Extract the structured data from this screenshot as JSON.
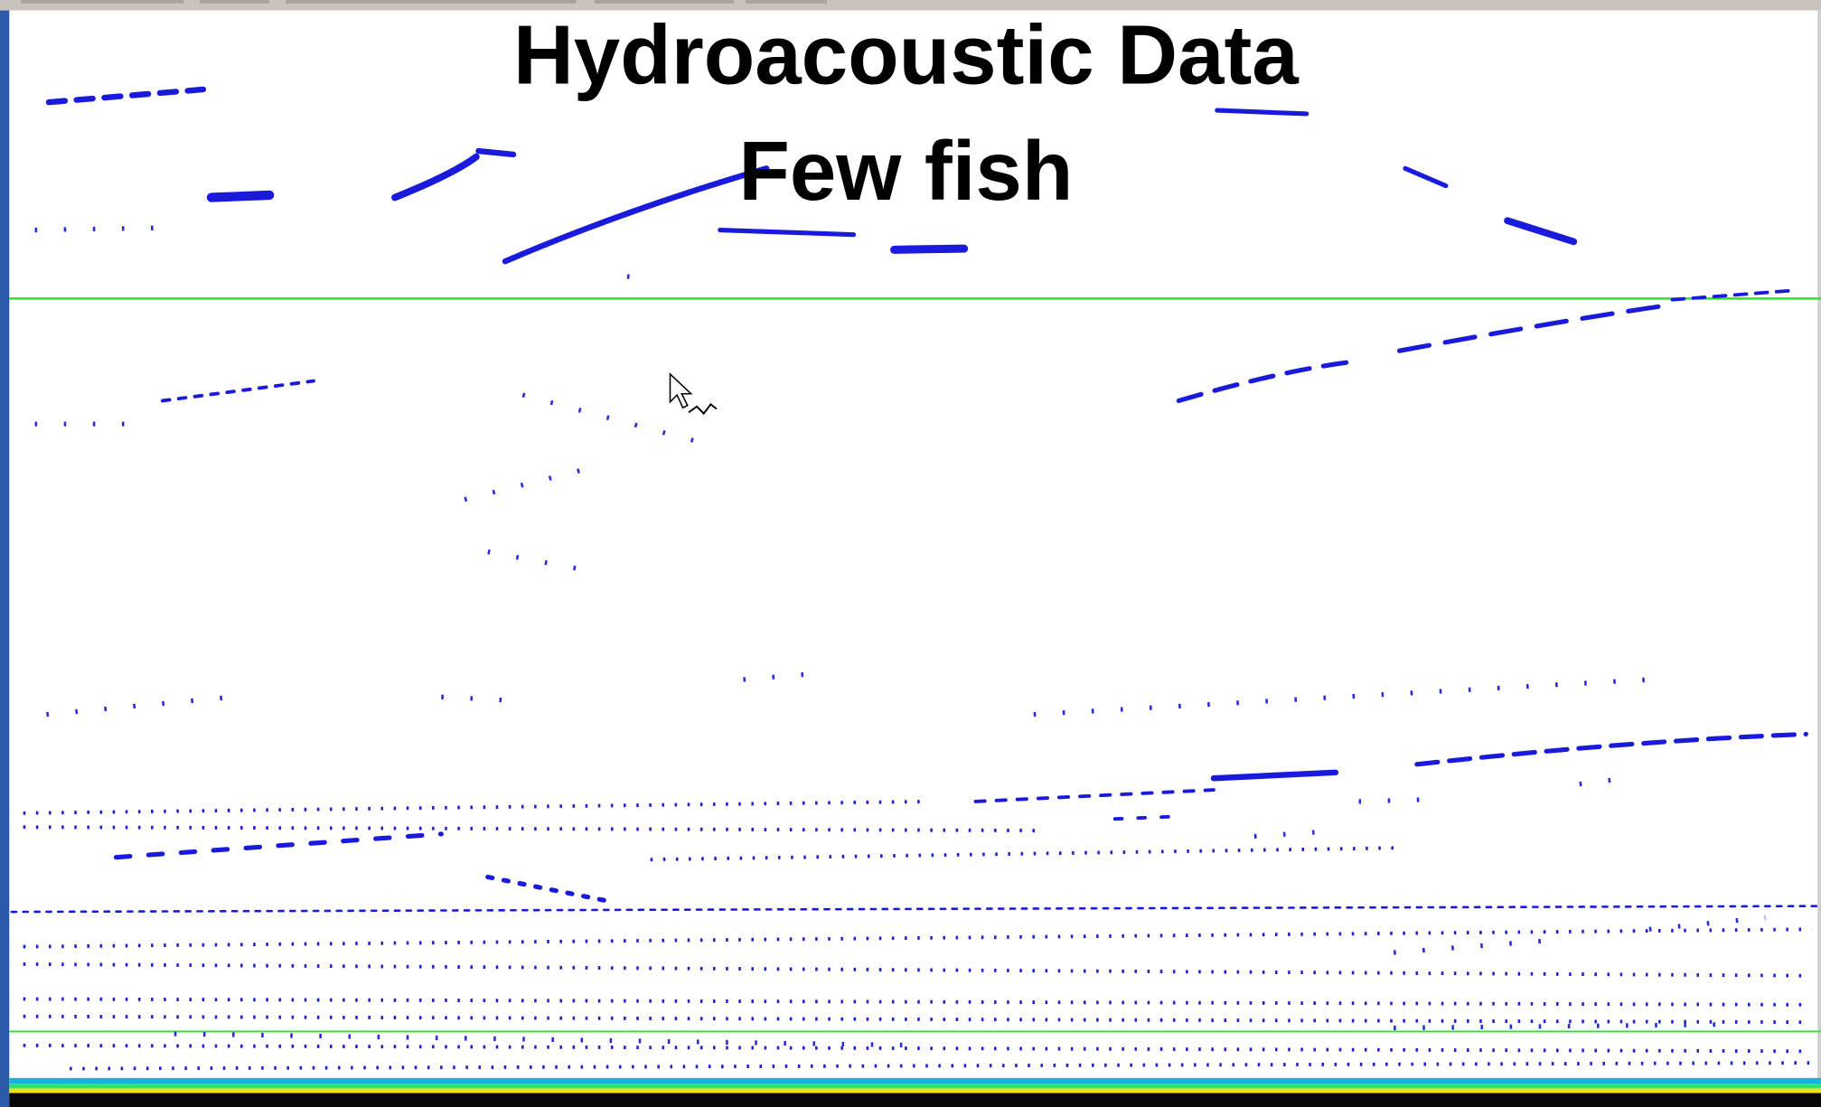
{
  "title": {
    "line1": "Hydroacoustic Data",
    "line2": "Few fish"
  }
}
